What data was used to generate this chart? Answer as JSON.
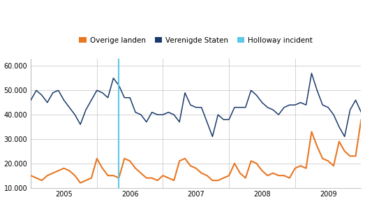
{
  "legend_labels": [
    "Overige landen",
    "Verenigde Staten",
    "Holloway incident"
  ],
  "legend_colors": [
    "#E87722",
    "#1A3A6B",
    "#5BC8E8"
  ],
  "bg_color": "#FFFFFF",
  "plot_bg_color": "#FFFFFF",
  "grid_color": "#CCCCCC",
  "spine_color": "#AAAAAA",
  "line_color_us": "#1A3A6B",
  "line_color_other": "#E87722",
  "line_color_holloway": "#5BC8E8",
  "ylim": [
    10000,
    63000
  ],
  "yticks": [
    10000,
    20000,
    30000,
    40000,
    50000,
    60000
  ],
  "ytick_labels": [
    "10.000",
    "20.000",
    "30.000",
    "40.000",
    "50.000",
    "60.000"
  ],
  "holloway_x": 16,
  "us_data": [
    46000,
    50000,
    48000,
    45000,
    49000,
    50000,
    46000,
    43000,
    40000,
    36000,
    42000,
    46000,
    50000,
    49000,
    47000,
    55000,
    52000,
    47000,
    47000,
    41000,
    40000,
    37000,
    41000,
    40000,
    40000,
    41000,
    40000,
    37000,
    49000,
    44000,
    43000,
    43000,
    37000,
    31000,
    40000,
    38000,
    38000,
    43000,
    43000,
    43000,
    50000,
    48000,
    45000,
    43000,
    42000,
    40000,
    43000,
    44000,
    44000,
    45000,
    44000,
    57000,
    50000,
    44000,
    43000,
    40000,
    35000,
    31000,
    42000,
    46000,
    41000
  ],
  "other_data": [
    15000,
    14000,
    13000,
    15000,
    16000,
    17000,
    18000,
    17000,
    15000,
    12000,
    13000,
    14000,
    22000,
    18000,
    15000,
    15000,
    14000,
    22000,
    21000,
    18000,
    16000,
    14000,
    14000,
    13000,
    15000,
    14000,
    13000,
    21000,
    22000,
    19000,
    18000,
    16000,
    15000,
    13000,
    13000,
    14000,
    15000,
    20000,
    16000,
    14000,
    21000,
    20000,
    17000,
    15000,
    16000,
    15000,
    15000,
    14000,
    18000,
    19000,
    18000,
    33000,
    27000,
    22000,
    21000,
    19000,
    29000,
    25000,
    23000,
    23000,
    38000
  ],
  "xtick_positions": [
    6,
    18,
    30,
    42,
    54
  ],
  "xtick_labels": [
    "2005",
    "2006",
    "2007",
    "2008",
    "2009"
  ],
  "vgrid_positions": [
    0,
    12,
    24,
    36,
    48,
    60
  ],
  "n_points": 61
}
